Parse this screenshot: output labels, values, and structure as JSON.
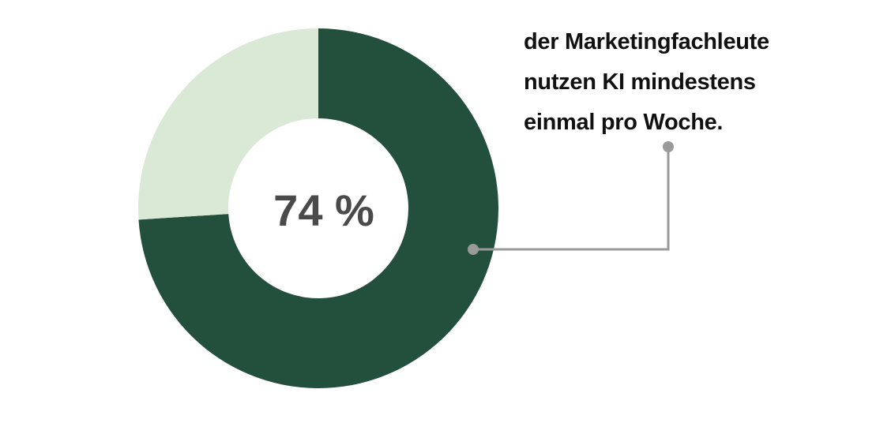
{
  "chart_data": {
    "type": "pie",
    "variant": "donut",
    "slices": [
      {
        "value": 74,
        "color": "#234f3d"
      },
      {
        "value": 26,
        "color": "#dae9d6"
      }
    ],
    "center_label": "74 %",
    "annotation_lines": [
      "der Marketingfachleute",
      "nutzen KI mindestens",
      "einmal pro Woche."
    ],
    "leader_color": "#9a9a9a"
  }
}
